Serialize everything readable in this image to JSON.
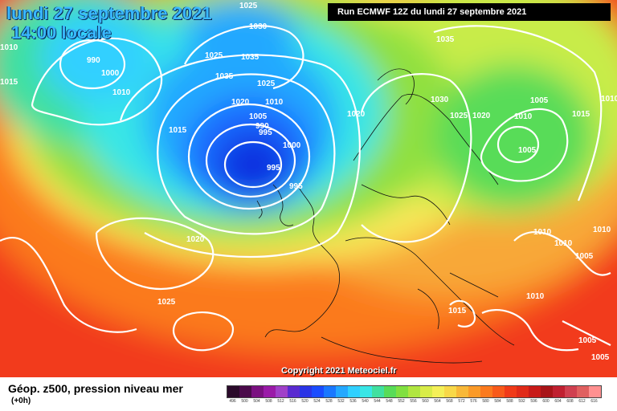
{
  "header": {
    "date": "lundi 27 septembre 2021",
    "time": "14:00 locale",
    "run": "Run ECMWF 12Z du lundi 27 septembre 2021"
  },
  "map": {
    "copyright": "Copyright 2021 Meteociel.fr",
    "isobar_labels": [
      "1025",
      "1030",
      "1035",
      "1025",
      "1015",
      "990",
      "1000",
      "1010",
      "1010",
      "1015",
      "1035",
      "1025",
      "1020",
      "1010",
      "1005",
      "990",
      "995",
      "1000",
      "995",
      "995",
      "1020",
      "1035",
      "1030",
      "1025",
      "1020",
      "1010",
      "1005",
      "1005",
      "1015",
      "1010",
      "1020",
      "1025",
      "1010",
      "1010",
      "1005",
      "1010",
      "1015",
      "1005",
      "1005",
      "1010"
    ],
    "colors": {
      "low": "#0a3cff",
      "cyan": "#2fd6ff",
      "green": "#6fdc3c",
      "yellow": "#f8f060",
      "orange": "#ff8c1a",
      "red": "#f23a1f",
      "isobar": "#ffffff"
    }
  },
  "legend": {
    "title": "Géop. z500, pression niveau mer",
    "subtitle": "(+0h)",
    "levels": [
      "496",
      "500",
      "504",
      "508",
      "512",
      "516",
      "520",
      "524",
      "528",
      "532",
      "536",
      "540",
      "544",
      "548",
      "552",
      "556",
      "560",
      "564",
      "568",
      "572",
      "576",
      "580",
      "584",
      "588",
      "592",
      "596",
      "600",
      "604",
      "608",
      "612",
      "616"
    ],
    "colors": [
      "#2a0a2a",
      "#4a0a4a",
      "#7a1080",
      "#9a1aa8",
      "#a040c8",
      "#5a2ad0",
      "#2a34e6",
      "#1a4cff",
      "#1a78ff",
      "#24a8ff",
      "#30d0ff",
      "#38e6e6",
      "#40e0a0",
      "#58dc58",
      "#80e040",
      "#b0e640",
      "#d8ec48",
      "#f4f058",
      "#f8d848",
      "#f8b838",
      "#fa9a28",
      "#fb7a1e",
      "#f85a1a",
      "#f03a18",
      "#e02a18",
      "#c81a18",
      "#a81418",
      "#c02030",
      "#d04050",
      "#e06060",
      "#ff9090"
    ]
  }
}
